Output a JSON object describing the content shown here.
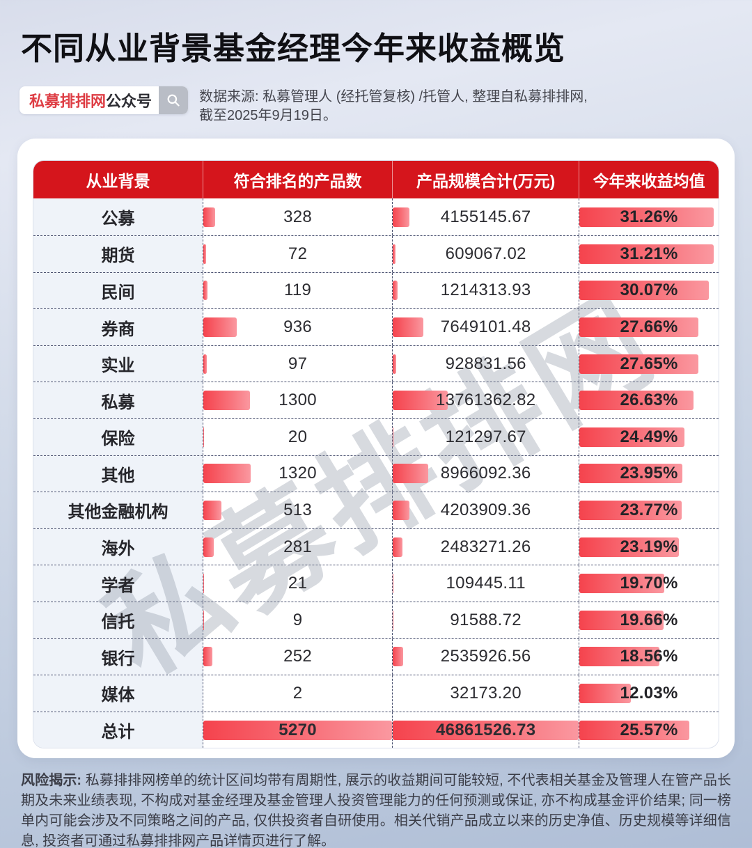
{
  "page": {
    "title": "不同从业背景基金经理今年来收益概览"
  },
  "badge": {
    "brand": "私募排排网",
    "suffix": "公众号"
  },
  "source": {
    "line1": "数据来源: 私募管理人 (经托管复核) /托管人, 整理自私募排排网,",
    "line2": "截至2025年9月19日。"
  },
  "watermark": "私募排排网",
  "colors": {
    "header_bg": "#d5151c",
    "brand_red": "#de3e45",
    "dash": "#4a5170",
    "label_bg": "#eff3f9",
    "bar_start": "#f5434d",
    "bar_end": "#fa98a0"
  },
  "chart_data": {
    "type": "table",
    "title": "不同从业背景基金经理今年来收益概览",
    "columns": [
      "从业背景",
      "符合排名的产品数",
      "产品规模合计(万元)",
      "今年来收益均值"
    ],
    "rows": [
      {
        "background": "公募",
        "products": 328,
        "scale_wan": 4155145.67,
        "ytd_return": "31.26%"
      },
      {
        "background": "期货",
        "products": 72,
        "scale_wan": 609067.02,
        "ytd_return": "31.21%"
      },
      {
        "background": "民间",
        "products": 119,
        "scale_wan": 1214313.93,
        "ytd_return": "30.07%"
      },
      {
        "background": "券商",
        "products": 936,
        "scale_wan": 7649101.48,
        "ytd_return": "27.66%"
      },
      {
        "background": "实业",
        "products": 97,
        "scale_wan": 928831.56,
        "ytd_return": "27.65%"
      },
      {
        "background": "私募",
        "products": 1300,
        "scale_wan": 13761362.82,
        "ytd_return": "26.63%"
      },
      {
        "background": "保险",
        "products": 20,
        "scale_wan": 121297.67,
        "ytd_return": "24.49%"
      },
      {
        "background": "其他",
        "products": 1320,
        "scale_wan": 8966092.36,
        "ytd_return": "23.95%"
      },
      {
        "background": "其他金融机构",
        "products": 513,
        "scale_wan": 4203909.36,
        "ytd_return": "23.77%"
      },
      {
        "background": "海外",
        "products": 281,
        "scale_wan": 2483271.26,
        "ytd_return": "23.19%"
      },
      {
        "background": "学者",
        "products": 21,
        "scale_wan": 109445.11,
        "ytd_return": "19.70%"
      },
      {
        "background": "信托",
        "products": 9,
        "scale_wan": 91588.72,
        "ytd_return": "19.66%"
      },
      {
        "background": "银行",
        "products": 252,
        "scale_wan": 2535926.56,
        "ytd_return": "18.56%"
      },
      {
        "background": "媒体",
        "products": 2,
        "scale_wan": 32173.2,
        "ytd_return": "12.03%"
      }
    ],
    "total": {
      "background": "总计",
      "products": 5270,
      "scale_wan": 46861526.73,
      "ytd_return": "25.57%"
    }
  },
  "disclaimer": {
    "label": "风险揭示:",
    "text": " 私募排排网榜单的统计区间均带有周期性, 展示的收益期间可能较短, 不代表相关基金及管理人在管产品长期及未来业绩表现, 不构成对基金经理及基金管理人投资管理能力的任何预测或保证, 亦不构成基金评价结果; 同一榜单内可能会涉及不同策略之间的产品, 仅供投资者自研使用。相关代销产品成立以来的历史净值、历史规模等详细信息, 投资者可通过私募排排网产品详情页进行了解。"
  }
}
